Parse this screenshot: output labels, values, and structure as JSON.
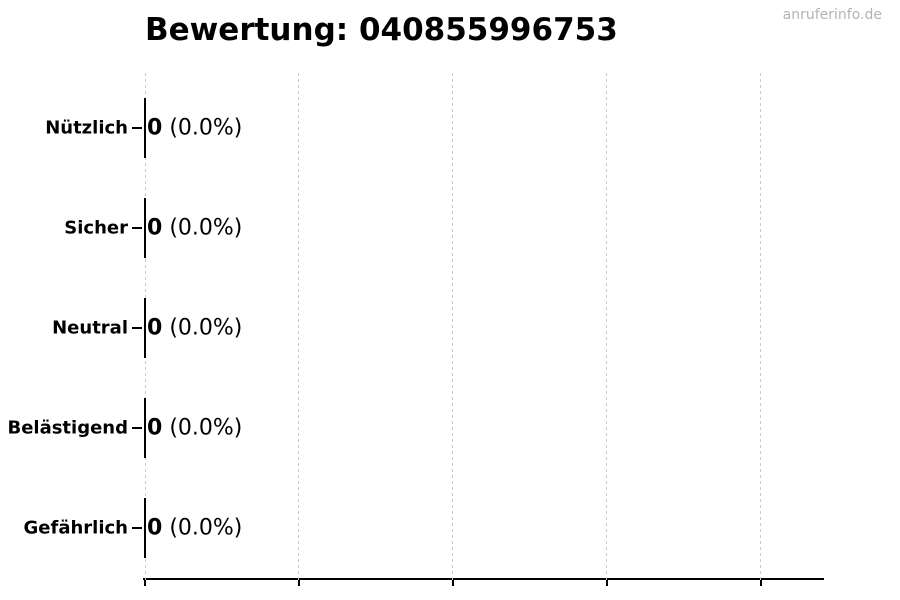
{
  "title": "Bewertung: 040855996753",
  "watermark": "anruferinfo.de",
  "colors": {
    "background": "#ffffff",
    "text": "#000000",
    "gridline": "#c9c9c9",
    "axis": "#000000",
    "bar_edge": "#000000",
    "watermark": "#b3b3b3"
  },
  "chart_data": {
    "type": "bar",
    "orientation": "horizontal",
    "title": "Bewertung: 040855996753",
    "categories": [
      "Nützlich",
      "Sicher",
      "Neutral",
      "Belästigend",
      "Gefährlich"
    ],
    "values": [
      0,
      0,
      0,
      0,
      0
    ],
    "percent_labels": [
      "(0.0%)",
      "(0.0%)",
      "(0.0%)",
      "(0.0%)",
      "(0.0%)"
    ],
    "value_label_format": "{value} ({percent})",
    "legend": "none",
    "grid": {
      "vertical_gridlines": 5,
      "style": "dashed",
      "horizontal_gridlines": 0
    },
    "x_axis": {
      "tick_count": 5,
      "tick_labels_visible": false
    },
    "y_axis": {
      "tick_marks": true,
      "labels_bold": true
    }
  }
}
